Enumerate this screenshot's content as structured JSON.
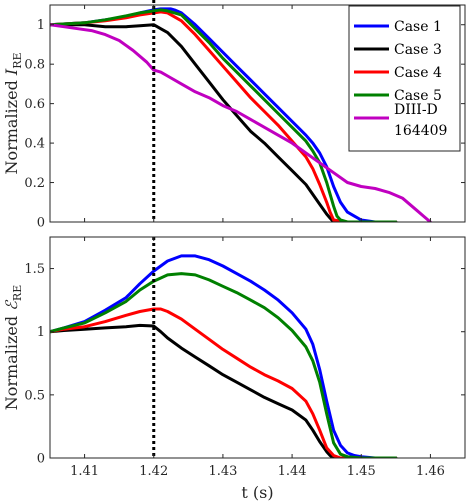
{
  "chart_data": [
    {
      "type": "line",
      "ylabel_text": "Normalized ",
      "ylabel_symbol": "I",
      "ylabel_sub": "RE",
      "xlim": [
        1.405,
        1.465
      ],
      "ylim": [
        0,
        1.1
      ],
      "yticks": [
        0,
        0.2,
        0.4,
        0.6,
        0.8,
        1
      ],
      "ytick_labels": [
        "0",
        "0.2",
        "0.4",
        "0.6",
        "0.8",
        "1"
      ],
      "xtick_labels": [],
      "vline_x": 1.42,
      "grid": false,
      "legend_position": "top-right",
      "series": [
        {
          "name": "Case 1",
          "color": "#0000ff",
          "x": [
            1.405,
            1.41,
            1.413,
            1.416,
            1.418,
            1.42,
            1.421,
            1.422,
            1.4225,
            1.423,
            1.424,
            1.426,
            1.428,
            1.43,
            1.432,
            1.434,
            1.436,
            1.438,
            1.44,
            1.442,
            1.443,
            1.444,
            1.445,
            1.446,
            1.447,
            1.448,
            1.449,
            1.45,
            1.452,
            1.455
          ],
          "y": [
            1.0,
            1.01,
            1.025,
            1.04,
            1.06,
            1.075,
            1.08,
            1.08,
            1.08,
            1.075,
            1.06,
            1.0,
            0.93,
            0.86,
            0.79,
            0.72,
            0.65,
            0.58,
            0.51,
            0.44,
            0.4,
            0.35,
            0.28,
            0.18,
            0.1,
            0.05,
            0.03,
            0.01,
            0.0,
            0.0
          ]
        },
        {
          "name": "Case 3",
          "color": "#000000",
          "x": [
            1.405,
            1.41,
            1.413,
            1.416,
            1.418,
            1.42,
            1.421,
            1.422,
            1.424,
            1.426,
            1.428,
            1.43,
            1.432,
            1.434,
            1.436,
            1.438,
            1.44,
            1.442,
            1.443,
            1.444,
            1.445,
            1.4455,
            1.446,
            1.447,
            1.448,
            1.45,
            1.455
          ],
          "y": [
            1.0,
            1.0,
            0.99,
            0.99,
            0.995,
            1.0,
            0.98,
            0.96,
            0.89,
            0.8,
            0.71,
            0.62,
            0.54,
            0.46,
            0.4,
            0.33,
            0.26,
            0.19,
            0.14,
            0.09,
            0.04,
            0.02,
            0.0,
            0.0,
            0.0,
            0.0,
            0.0
          ]
        },
        {
          "name": "Case 4",
          "color": "#ff0000",
          "x": [
            1.405,
            1.41,
            1.413,
            1.416,
            1.418,
            1.42,
            1.421,
            1.422,
            1.424,
            1.426,
            1.428,
            1.43,
            1.432,
            1.434,
            1.436,
            1.438,
            1.44,
            1.442,
            1.443,
            1.444,
            1.445,
            1.4455,
            1.446,
            1.448,
            1.45,
            1.455
          ],
          "y": [
            1.0,
            1.01,
            1.02,
            1.035,
            1.05,
            1.06,
            1.065,
            1.06,
            1.02,
            0.95,
            0.87,
            0.79,
            0.71,
            0.63,
            0.56,
            0.49,
            0.41,
            0.33,
            0.27,
            0.19,
            0.1,
            0.05,
            0.01,
            0.0,
            0.0,
            0.0
          ]
        },
        {
          "name": "Case 5",
          "color": "#008000",
          "x": [
            1.405,
            1.41,
            1.413,
            1.416,
            1.418,
            1.42,
            1.421,
            1.422,
            1.423,
            1.424,
            1.426,
            1.428,
            1.43,
            1.432,
            1.434,
            1.436,
            1.438,
            1.44,
            1.442,
            1.443,
            1.444,
            1.445,
            1.446,
            1.4465,
            1.447,
            1.448,
            1.45,
            1.455
          ],
          "y": [
            1.0,
            1.01,
            1.025,
            1.045,
            1.06,
            1.07,
            1.075,
            1.07,
            1.06,
            1.05,
            0.98,
            0.91,
            0.83,
            0.76,
            0.69,
            0.62,
            0.55,
            0.48,
            0.41,
            0.36,
            0.3,
            0.2,
            0.08,
            0.03,
            0.01,
            0.0,
            0.0,
            0.0
          ]
        },
        {
          "name": "DIII-D 164409",
          "color": "#c000c0",
          "x": [
            1.405,
            1.407,
            1.409,
            1.411,
            1.413,
            1.415,
            1.417,
            1.419,
            1.42,
            1.421,
            1.422,
            1.424,
            1.426,
            1.428,
            1.43,
            1.432,
            1.434,
            1.436,
            1.438,
            1.44,
            1.442,
            1.444,
            1.446,
            1.448,
            1.45,
            1.452,
            1.454,
            1.456,
            1.458,
            1.459,
            1.46
          ],
          "y": [
            1.0,
            0.99,
            0.98,
            0.97,
            0.95,
            0.92,
            0.87,
            0.81,
            0.77,
            0.76,
            0.74,
            0.7,
            0.66,
            0.63,
            0.59,
            0.56,
            0.52,
            0.48,
            0.44,
            0.4,
            0.35,
            0.3,
            0.25,
            0.2,
            0.18,
            0.17,
            0.15,
            0.12,
            0.06,
            0.03,
            0.0
          ]
        }
      ]
    },
    {
      "type": "line",
      "ylabel_text": "Normalized ",
      "ylabel_symbol": "ℰ",
      "ylabel_sub": "RE",
      "xlabel": "t (s)",
      "xlim": [
        1.405,
        1.465
      ],
      "ylim": [
        0,
        1.75
      ],
      "yticks": [
        0,
        0.5,
        1,
        1.5
      ],
      "ytick_labels": [
        "0",
        "0.5",
        "1",
        "1.5"
      ],
      "xticks": [
        1.41,
        1.42,
        1.43,
        1.44,
        1.45,
        1.46
      ],
      "xtick_labels": [
        "1.41",
        "1.42",
        "1.43",
        "1.44",
        "1.45",
        "1.46"
      ],
      "vline_x": 1.42,
      "grid": false,
      "series": [
        {
          "name": "Case 1",
          "color": "#0000ff",
          "x": [
            1.405,
            1.407,
            1.41,
            1.413,
            1.416,
            1.418,
            1.42,
            1.422,
            1.424,
            1.426,
            1.428,
            1.43,
            1.432,
            1.434,
            1.436,
            1.438,
            1.44,
            1.442,
            1.443,
            1.444,
            1.445,
            1.446,
            1.447,
            1.448,
            1.449,
            1.45,
            1.452,
            1.455
          ],
          "y": [
            1.0,
            1.03,
            1.08,
            1.17,
            1.27,
            1.38,
            1.48,
            1.56,
            1.6,
            1.6,
            1.57,
            1.52,
            1.46,
            1.4,
            1.33,
            1.25,
            1.15,
            1.02,
            0.9,
            0.7,
            0.45,
            0.22,
            0.1,
            0.04,
            0.02,
            0.01,
            0.0,
            0.0
          ]
        },
        {
          "name": "Case 3",
          "color": "#000000",
          "x": [
            1.405,
            1.407,
            1.41,
            1.413,
            1.416,
            1.418,
            1.42,
            1.421,
            1.422,
            1.424,
            1.426,
            1.428,
            1.43,
            1.432,
            1.434,
            1.436,
            1.438,
            1.44,
            1.442,
            1.443,
            1.444,
            1.445,
            1.4455,
            1.446,
            1.448,
            1.45,
            1.455
          ],
          "y": [
            1.0,
            1.01,
            1.02,
            1.03,
            1.04,
            1.05,
            1.045,
            1.0,
            0.95,
            0.87,
            0.8,
            0.73,
            0.66,
            0.6,
            0.54,
            0.48,
            0.43,
            0.38,
            0.3,
            0.22,
            0.13,
            0.05,
            0.02,
            0.0,
            0.0,
            0.0,
            0.0
          ]
        },
        {
          "name": "Case 4",
          "color": "#ff0000",
          "x": [
            1.405,
            1.407,
            1.41,
            1.413,
            1.416,
            1.418,
            1.42,
            1.421,
            1.422,
            1.424,
            1.426,
            1.428,
            1.43,
            1.432,
            1.434,
            1.436,
            1.438,
            1.44,
            1.442,
            1.443,
            1.444,
            1.445,
            1.446,
            1.447,
            1.448,
            1.45,
            1.455
          ],
          "y": [
            1.0,
            1.02,
            1.04,
            1.08,
            1.13,
            1.16,
            1.18,
            1.18,
            1.16,
            1.1,
            1.02,
            0.94,
            0.86,
            0.79,
            0.72,
            0.66,
            0.61,
            0.55,
            0.45,
            0.35,
            0.22,
            0.08,
            0.02,
            0.0,
            0.0,
            0.0,
            0.0
          ]
        },
        {
          "name": "Case 5",
          "color": "#008000",
          "x": [
            1.405,
            1.407,
            1.41,
            1.413,
            1.416,
            1.418,
            1.42,
            1.422,
            1.424,
            1.426,
            1.428,
            1.43,
            1.432,
            1.434,
            1.436,
            1.438,
            1.44,
            1.442,
            1.443,
            1.444,
            1.445,
            1.446,
            1.447,
            1.448,
            1.45,
            1.455
          ],
          "y": [
            1.0,
            1.03,
            1.07,
            1.15,
            1.24,
            1.33,
            1.4,
            1.45,
            1.46,
            1.45,
            1.41,
            1.36,
            1.31,
            1.25,
            1.19,
            1.11,
            1.01,
            0.88,
            0.77,
            0.6,
            0.35,
            0.12,
            0.03,
            0.01,
            0.0,
            0.0
          ]
        }
      ]
    }
  ]
}
